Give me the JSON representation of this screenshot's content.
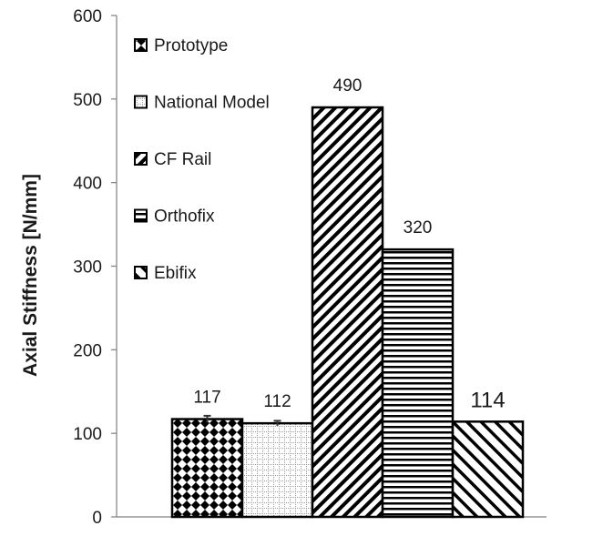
{
  "chart_data": {
    "type": "bar",
    "title": "",
    "xlabel": "",
    "ylabel": "Axial Stiffness [N/mm]",
    "ylim": [
      0,
      600
    ],
    "yticks": [
      0,
      100,
      200,
      300,
      400,
      500,
      600
    ],
    "grid": false,
    "legend_position": "top-left",
    "series": [
      {
        "name": "Prototype",
        "value": 117,
        "data_label": "117",
        "pattern": "checker-diamond",
        "error": 4
      },
      {
        "name": "National Model",
        "value": 112,
        "data_label": "112",
        "pattern": "dotted-grid",
        "error": 3
      },
      {
        "name": "CF Rail",
        "value": 490,
        "data_label": "490",
        "pattern": "diagonal-up"
      },
      {
        "name": "Orthofix",
        "value": 320,
        "data_label": "320",
        "pattern": "horizontal-lines"
      },
      {
        "name": "Ebifix",
        "value": 114,
        "data_label": "114",
        "pattern": "diagonal-down"
      }
    ]
  }
}
